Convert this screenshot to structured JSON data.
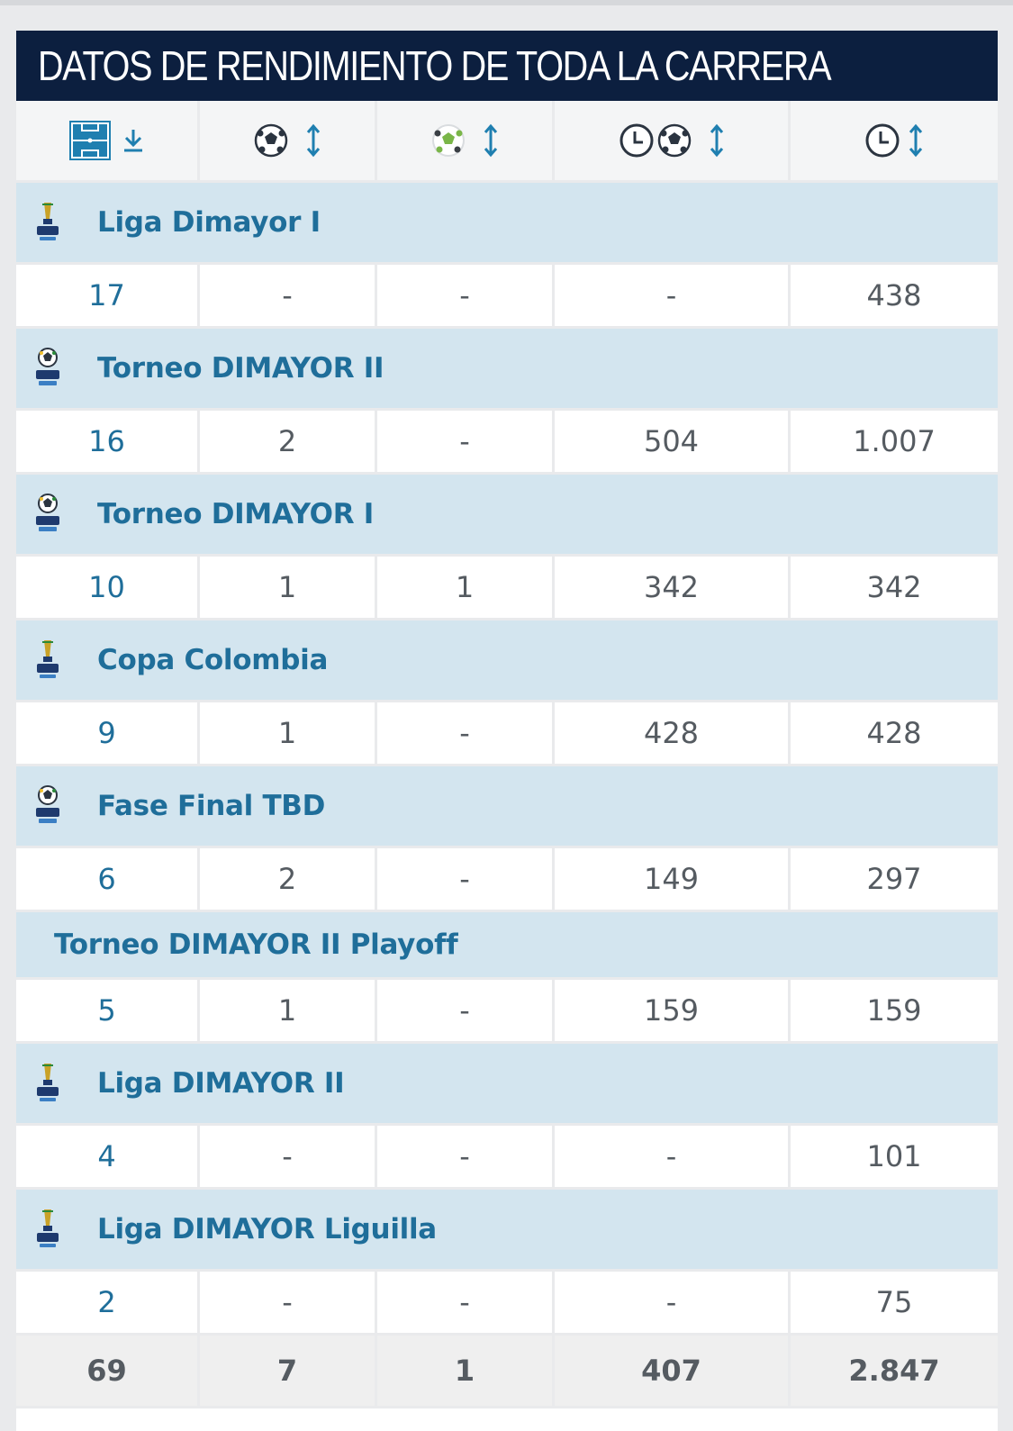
{
  "title": "DATOS DE RENDIMIENTO DE TODA LA CARRERA",
  "header": {
    "columns": [
      {
        "icon": "pitch-appearances-icon",
        "sort": "sort-desc-icon"
      },
      {
        "icon": "ball-goals-icon",
        "sort": "sort-icon"
      },
      {
        "icon": "green-ball-assists-icon",
        "sort": "sort-icon"
      },
      {
        "icon": "clock-ball-minutes-per-goal-icon",
        "sort": "sort-icon"
      },
      {
        "icon": "clock-minutes-icon",
        "sort": "sort-icon"
      }
    ]
  },
  "competitions": [
    {
      "name": "Liga Dimayor I",
      "logo": "liga-betplay-logo",
      "stats": [
        "17",
        "-",
        "-",
        "-",
        "438"
      ]
    },
    {
      "name": "Torneo DIMAYOR II",
      "logo": "torneo-dimayor-logo",
      "stats": [
        "16",
        "2",
        "-",
        "504",
        "1.007"
      ]
    },
    {
      "name": "Torneo DIMAYOR I",
      "logo": "torneo-betplay-logo",
      "stats": [
        "10",
        "1",
        "1",
        "342",
        "342"
      ]
    },
    {
      "name": "Copa Colombia",
      "logo": "copa-colombia-logo",
      "stats": [
        "9",
        "1",
        "-",
        "428",
        "428"
      ]
    },
    {
      "name": "Fase Final TBD",
      "logo": "torneo-betplay-logo",
      "stats": [
        "6",
        "2",
        "-",
        "149",
        "297"
      ]
    },
    {
      "name": "Torneo DIMAYOR II Playoff",
      "logo": "",
      "stats": [
        "5",
        "1",
        "-",
        "159",
        "159"
      ]
    },
    {
      "name": "Liga DIMAYOR II",
      "logo": "liga-dimayor-logo",
      "stats": [
        "4",
        "-",
        "-",
        "-",
        "101"
      ]
    },
    {
      "name": "Liga DIMAYOR Liguilla",
      "logo": "liga-betplay-logo",
      "stats": [
        "2",
        "-",
        "-",
        "-",
        "75"
      ]
    }
  ],
  "totals": [
    "69",
    "7",
    "1",
    "407",
    "2.847"
  ],
  "colors": {
    "title_bg": "#0c1f3f",
    "competition_bg": "#d3e5ef",
    "link": "#1f6e9a",
    "accent": "#1f7fb0"
  }
}
